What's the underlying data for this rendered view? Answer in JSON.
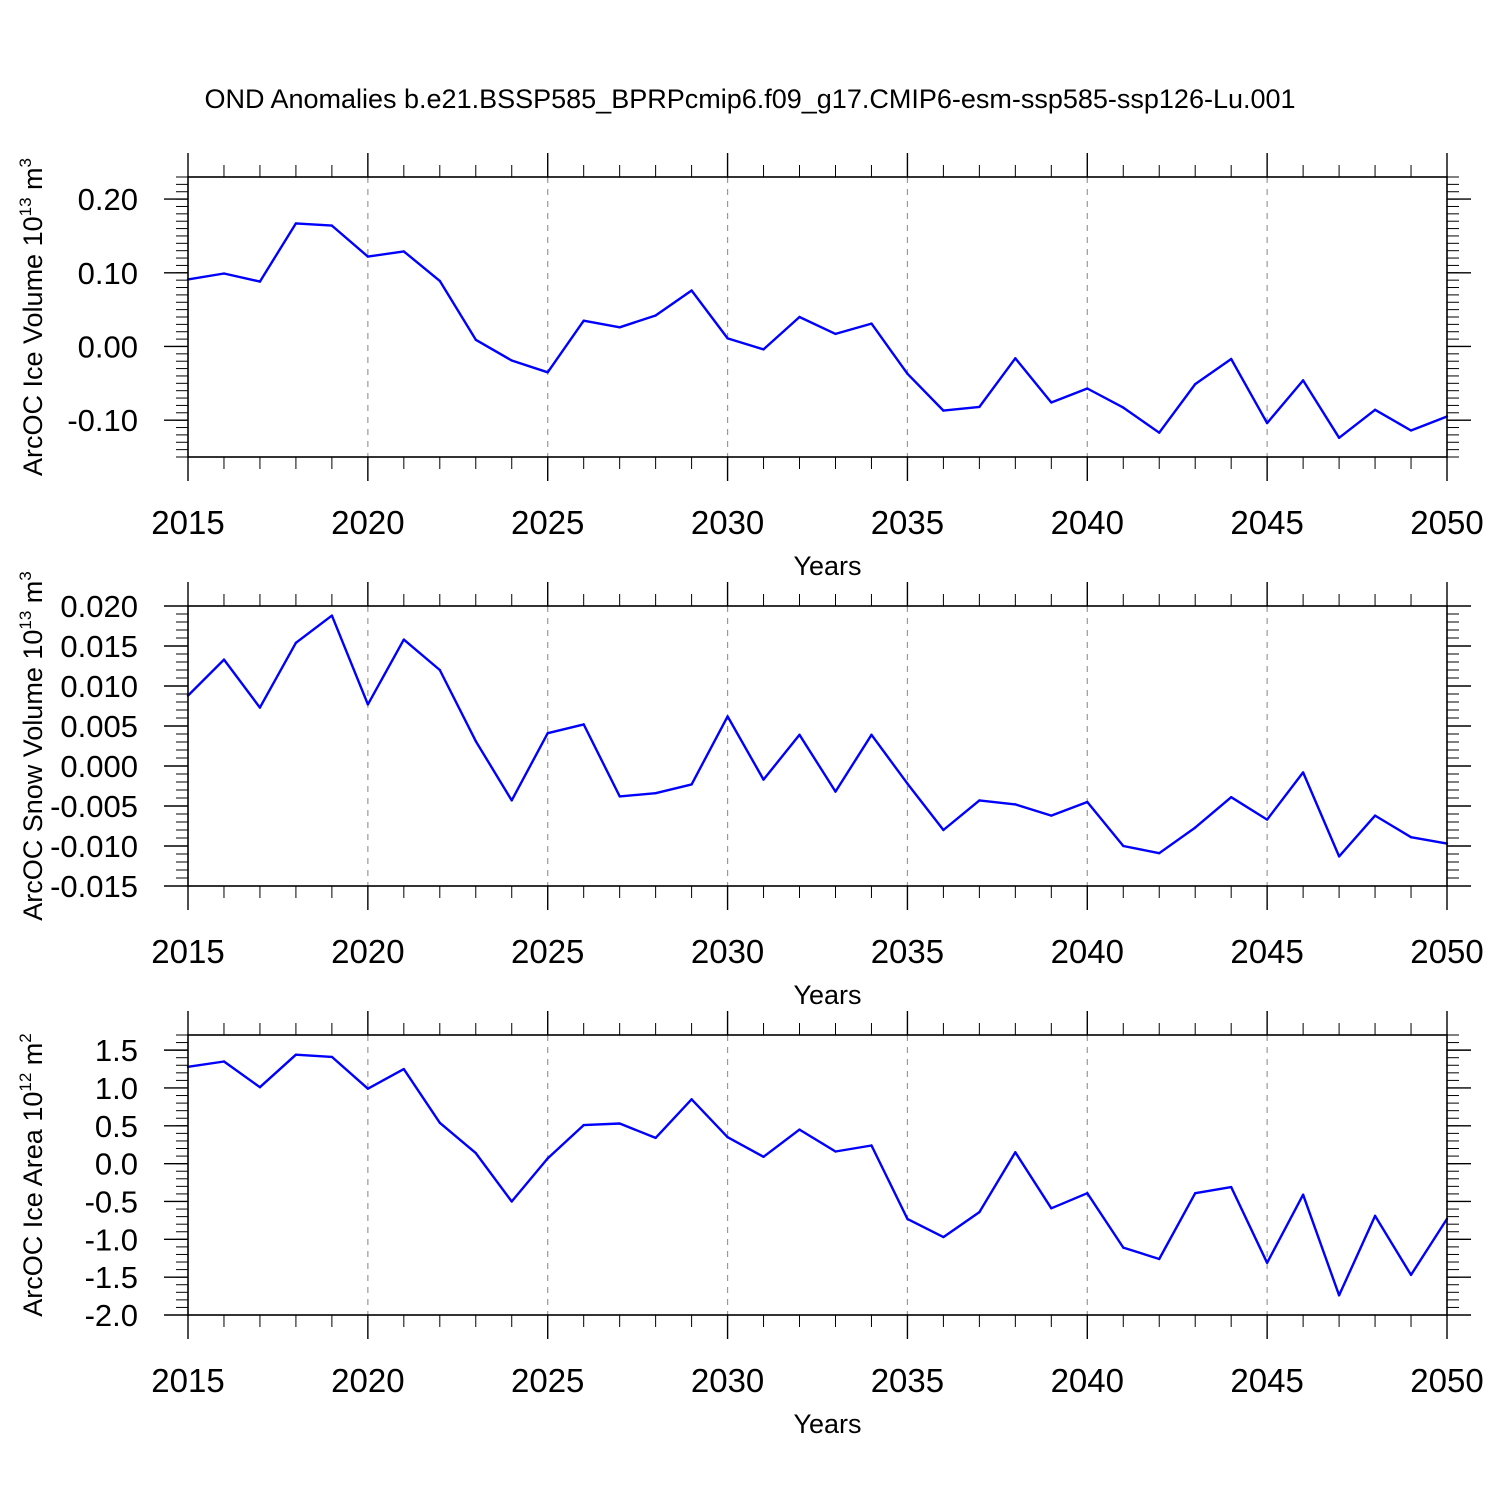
{
  "figure": {
    "title": "OND Anomalies b.e21.BSSP585_BPRPcmip6.f09_g17.CMIP6-esm-ssp585-ssp126-Lu.001",
    "line_color": "#0000ff",
    "grid_color": "#999999"
  },
  "chart_data": [
    {
      "type": "line",
      "xlabel": "Years",
      "ylabel": "ArcOC Ice Volume 10",
      "ylabel_sup": "13",
      "ylabel_unit": "m",
      "ylabel_unit_sup": "3",
      "xlim": [
        2015,
        2050
      ],
      "ylim": [
        -0.15,
        0.23
      ],
      "xticks": [
        2015,
        2020,
        2025,
        2030,
        2035,
        2040,
        2045,
        2050
      ],
      "xtick_labels": [
        "2015",
        "2020",
        "2025",
        "2030",
        "2035",
        "2040",
        "2045",
        "2050"
      ],
      "yticks": [
        -0.1,
        0.0,
        0.1,
        0.2
      ],
      "ytick_labels": [
        "-0.10",
        "0.00",
        "0.10",
        "0.20"
      ],
      "yminor_step": 0.01,
      "grid": "vertical dashed",
      "x": [
        2015,
        2016,
        2017,
        2018,
        2019,
        2020,
        2021,
        2022,
        2023,
        2024,
        2025,
        2026,
        2027,
        2028,
        2029,
        2030,
        2031,
        2032,
        2033,
        2034,
        2035,
        2036,
        2037,
        2038,
        2039,
        2040,
        2041,
        2042,
        2043,
        2044,
        2045,
        2046,
        2047,
        2048,
        2049,
        2050
      ],
      "values": [
        0.091,
        0.099,
        0.088,
        0.167,
        0.164,
        0.122,
        0.129,
        0.089,
        0.009,
        -0.019,
        -0.035,
        0.035,
        0.026,
        0.042,
        0.076,
        0.011,
        -0.004,
        0.04,
        0.017,
        0.031,
        -0.037,
        -0.087,
        -0.082,
        -0.016,
        -0.076,
        -0.057,
        -0.083,
        -0.117,
        -0.051,
        -0.017,
        -0.104,
        -0.046,
        -0.124,
        -0.086,
        -0.114,
        -0.095
      ]
    },
    {
      "type": "line",
      "xlabel": "Years",
      "ylabel": "ArcOC Snow Volume 10",
      "ylabel_sup": "13",
      "ylabel_unit": "m",
      "ylabel_unit_sup": "3",
      "xlim": [
        2015,
        2050
      ],
      "ylim": [
        -0.015,
        0.02
      ],
      "xticks": [
        2015,
        2020,
        2025,
        2030,
        2035,
        2040,
        2045,
        2050
      ],
      "xtick_labels": [
        "2015",
        "2020",
        "2025",
        "2030",
        "2035",
        "2040",
        "2045",
        "2050"
      ],
      "yticks": [
        -0.015,
        -0.01,
        -0.005,
        0.0,
        0.005,
        0.01,
        0.015,
        0.02
      ],
      "ytick_labels": [
        "-0.015",
        "-0.010",
        "-0.005",
        "0.000",
        "0.005",
        "0.010",
        "0.015",
        "0.020"
      ],
      "yminor_step": 0.001,
      "grid": "vertical dashed",
      "x": [
        2015,
        2016,
        2017,
        2018,
        2019,
        2020,
        2021,
        2022,
        2023,
        2024,
        2025,
        2026,
        2027,
        2028,
        2029,
        2030,
        2031,
        2032,
        2033,
        2034,
        2035,
        2036,
        2037,
        2038,
        2039,
        2040,
        2041,
        2042,
        2043,
        2044,
        2045,
        2046,
        2047,
        2048,
        2049,
        2050
      ],
      "values": [
        0.0088,
        0.0133,
        0.0073,
        0.0154,
        0.0188,
        0.0077,
        0.0158,
        0.012,
        0.0031,
        -0.0043,
        0.0041,
        0.0052,
        -0.0038,
        -0.0034,
        -0.0023,
        0.0062,
        -0.0017,
        0.0039,
        -0.0032,
        0.0039,
        -0.0022,
        -0.008,
        -0.0043,
        -0.0048,
        -0.0062,
        -0.0045,
        -0.01,
        -0.0109,
        -0.0077,
        -0.0039,
        -0.0067,
        -0.0008,
        -0.0113,
        -0.0062,
        -0.0089,
        -0.0097
      ]
    },
    {
      "type": "line",
      "xlabel": "Years",
      "ylabel": "ArcOC Ice Area 10",
      "ylabel_sup": "12",
      "ylabel_unit": "m",
      "ylabel_unit_sup": "2",
      "xlim": [
        2015,
        2050
      ],
      "ylim": [
        -2.0,
        1.7
      ],
      "xticks": [
        2015,
        2020,
        2025,
        2030,
        2035,
        2040,
        2045,
        2050
      ],
      "xtick_labels": [
        "2015",
        "2020",
        "2025",
        "2030",
        "2035",
        "2040",
        "2045",
        "2050"
      ],
      "yticks": [
        -2.0,
        -1.5,
        -1.0,
        -0.5,
        0.0,
        0.5,
        1.0,
        1.5
      ],
      "ytick_labels": [
        "-2.0",
        "-1.5",
        "-1.0",
        "-0.5",
        "0.0",
        "0.5",
        "1.0",
        "1.5"
      ],
      "yminor_step": 0.1,
      "grid": "vertical dashed",
      "x": [
        2015,
        2016,
        2017,
        2018,
        2019,
        2020,
        2021,
        2022,
        2023,
        2024,
        2025,
        2026,
        2027,
        2028,
        2029,
        2030,
        2031,
        2032,
        2033,
        2034,
        2035,
        2036,
        2037,
        2038,
        2039,
        2040,
        2041,
        2042,
        2043,
        2044,
        2045,
        2046,
        2047,
        2048,
        2049,
        2050
      ],
      "values": [
        1.28,
        1.35,
        1.01,
        1.44,
        1.41,
        0.99,
        1.25,
        0.54,
        0.14,
        -0.5,
        0.07,
        0.51,
        0.53,
        0.34,
        0.85,
        0.35,
        0.09,
        0.45,
        0.16,
        0.24,
        -0.73,
        -0.97,
        -0.64,
        0.15,
        -0.59,
        -0.39,
        -1.11,
        -1.26,
        -0.39,
        -0.31,
        -1.31,
        -0.41,
        -1.74,
        -0.69,
        -1.47,
        -0.73
      ]
    }
  ]
}
